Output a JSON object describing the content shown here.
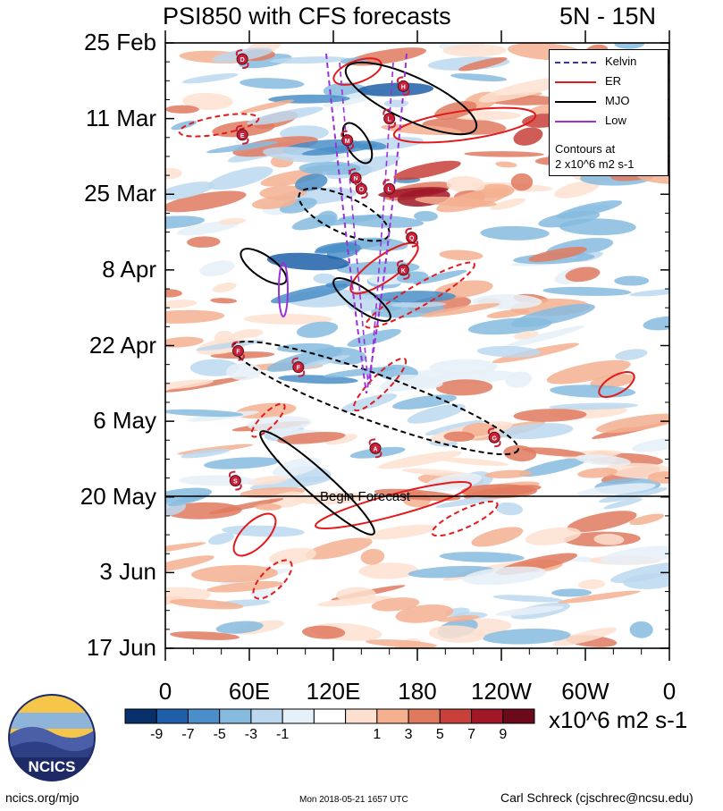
{
  "title": {
    "left": "PSI850 with CFS forecasts",
    "right": "5N - 15N"
  },
  "chart_data": {
    "type": "heatmap",
    "title": "PSI850 with CFS forecasts",
    "subtitle": "5N - 15N",
    "y_tick_labels": [
      "25 Feb",
      "11 Mar",
      "25 Mar",
      "8 Apr",
      "22 Apr",
      "6 May",
      "20 May",
      "3 Jun",
      "17 Jun"
    ],
    "x_tick_labels": [
      "0",
      "60E",
      "120E",
      "180",
      "120W",
      "60W",
      "0"
    ],
    "x_range_deg": [
      0,
      360
    ],
    "y_range": [
      "25 Feb",
      "17 Jun"
    ],
    "begin_forecast_label": "Begin Forecast",
    "begin_forecast_date": "20 May",
    "colorbar": {
      "labels": [
        "-9",
        "-7",
        "-5",
        "-3",
        "-1",
        "1",
        "3",
        "5",
        "7",
        "9"
      ],
      "colors": [
        "#08306b",
        "#1f5fa8",
        "#4a8fc9",
        "#86bbdf",
        "#bcd8ee",
        "#e6f0f8",
        "#ffffff",
        "#fde0d0",
        "#f5b090",
        "#e07a5f",
        "#c8403a",
        "#a01828",
        "#6a0a1a"
      ],
      "units": "x10^6 m2 s-1"
    },
    "legend": [
      {
        "name": "Kelvin",
        "color": "#3333cc"
      },
      {
        "name": "ER",
        "color": "#e31a1c"
      },
      {
        "name": "MJO",
        "color": "#000000"
      },
      {
        "name": "Low",
        "color": "#9b30d9"
      }
    ],
    "legend_note": [
      "Contours at",
      "2 x10^6 m2 s-1"
    ],
    "storms": [
      {
        "letter": "D",
        "lon": 55,
        "date": "28 Feb"
      },
      {
        "letter": "E",
        "lon": 55,
        "date": "14 Mar"
      },
      {
        "letter": "H",
        "lon": 170,
        "date": "5 Mar"
      },
      {
        "letter": "L",
        "lon": 160,
        "date": "11 Mar"
      },
      {
        "letter": "M",
        "lon": 130,
        "date": "15 Mar"
      },
      {
        "letter": "N",
        "lon": 136,
        "date": "22 Mar"
      },
      {
        "letter": "O",
        "lon": 140,
        "date": "24 Mar"
      },
      {
        "letter": "L",
        "lon": 160,
        "date": "24 Mar"
      },
      {
        "letter": "Q",
        "lon": 176,
        "date": "2 Apr"
      },
      {
        "letter": "K",
        "lon": 170,
        "date": "8 Apr"
      },
      {
        "letter": "F",
        "lon": 52,
        "date": "23 Apr"
      },
      {
        "letter": "F",
        "lon": 95,
        "date": "26 Apr"
      },
      {
        "letter": "A",
        "lon": 150,
        "date": "11 May"
      },
      {
        "letter": "G",
        "lon": 235,
        "date": "9 May"
      },
      {
        "letter": "S",
        "lon": 50,
        "date": "17 May"
      }
    ]
  },
  "footer": {
    "left": "ncics.org/mjo",
    "middle": "Mon 2018-05-21 1657 UTC",
    "right": "Carl Schreck (cjschrec@ncsu.edu)"
  },
  "logo": {
    "text": "NCICS"
  }
}
